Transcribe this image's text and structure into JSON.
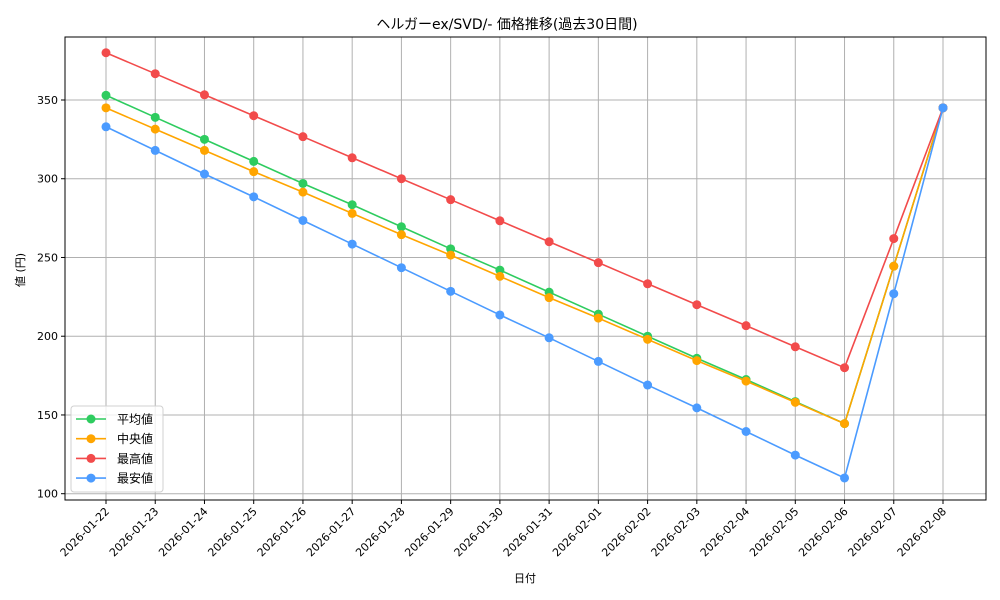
{
  "chart_data": {
    "type": "line",
    "title": "ヘルガーex/SVD/- 価格推移(過去30日間)",
    "xlabel": "日付",
    "ylabel": "値 (円)",
    "ylim": [
      96,
      390
    ],
    "yticks": [
      100,
      150,
      200,
      250,
      300,
      350
    ],
    "grid": true,
    "legend_position": "lower left",
    "categories": [
      "2026-01-22",
      "2026-01-23",
      "2026-01-24",
      "2026-01-25",
      "2026-01-26",
      "2026-01-27",
      "2026-01-28",
      "2026-01-29",
      "2026-01-30",
      "2026-01-31",
      "2026-02-01",
      "2026-02-02",
      "2026-02-03",
      "2026-02-04",
      "2026-02-05",
      "2026-02-06",
      "2026-02-07",
      "2026-02-08"
    ],
    "series": [
      {
        "name": "平均値",
        "color": "#2ecc5f",
        "values": [
          353,
          339,
          325,
          311,
          297,
          283.5,
          269.5,
          255.5,
          242,
          228,
          214,
          200,
          186,
          172.5,
          158.5,
          144.5,
          244.5,
          345
        ]
      },
      {
        "name": "中央値",
        "color": "#ffa500",
        "values": [
          345,
          331.5,
          318,
          304.5,
          291.5,
          278,
          264.5,
          251.5,
          238,
          224.5,
          211.5,
          198,
          184.5,
          171.5,
          158,
          144.5,
          244.5,
          345
        ]
      },
      {
        "name": "最高値",
        "color": "#f24b4b",
        "values": [
          380,
          366.7,
          353.3,
          340,
          326.7,
          313.3,
          300,
          286.7,
          273.3,
          260,
          246.7,
          233.3,
          220,
          206.7,
          193.3,
          180,
          262,
          345
        ]
      },
      {
        "name": "最安値",
        "color": "#4b9bff",
        "values": [
          333,
          318,
          303,
          288.5,
          273.5,
          258.5,
          243.5,
          228.5,
          213.5,
          199,
          184,
          169,
          154.5,
          139.5,
          124.5,
          110,
          227,
          345
        ]
      }
    ]
  }
}
